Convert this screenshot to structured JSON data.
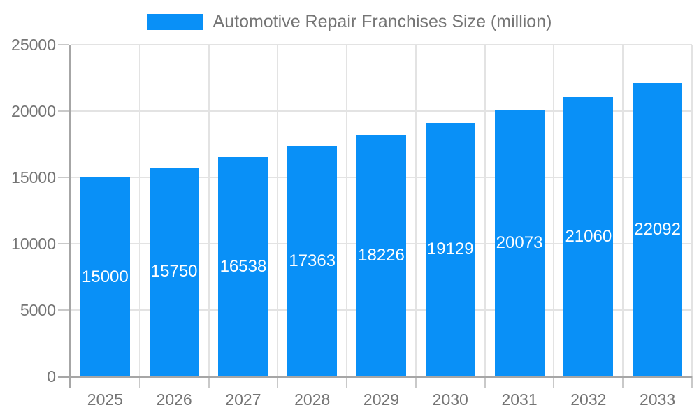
{
  "colors": {
    "bar": "#0990f7",
    "axis_text": "#757575",
    "value_label": "#ffffff",
    "grid": "#e3e3e3",
    "axis_line": "#a6a6a6",
    "tick": "#c9c9c9",
    "background": "#ffffff"
  },
  "legend": {
    "swatch_icon": "blue-rect-swatch",
    "label": "Automotive Repair Franchises Size (million)"
  },
  "chart_data": {
    "type": "bar",
    "title": "Automotive Repair Franchises Size (million)",
    "categories": [
      "2025",
      "2026",
      "2027",
      "2028",
      "2029",
      "2030",
      "2031",
      "2032",
      "2033"
    ],
    "series": [
      {
        "name": "Automotive Repair Franchises Size (million)",
        "values": [
          15000,
          15750,
          16538,
          17363,
          18226,
          19129,
          20073,
          21060,
          22092
        ]
      }
    ],
    "xlabel": "",
    "ylabel": "",
    "ylim": [
      0,
      25000
    ],
    "yticks": [
      0,
      5000,
      10000,
      15000,
      20000,
      25000
    ],
    "grid": true,
    "legend_position": "top",
    "value_labels_position": "inside-middle"
  }
}
